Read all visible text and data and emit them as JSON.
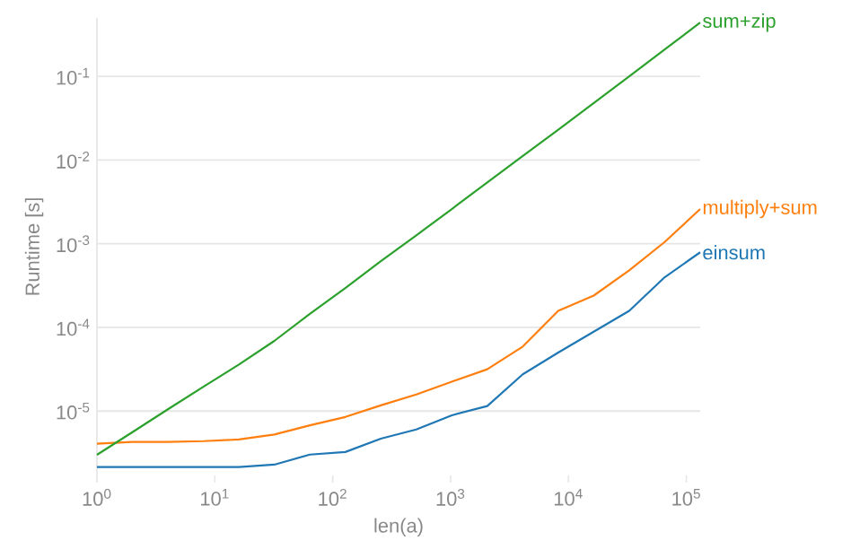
{
  "chart_data": {
    "type": "line",
    "xlabel": "len(a)",
    "ylabel": "Runtime [s]",
    "log": "xy",
    "grid": "y",
    "x": [
      1,
      2,
      4,
      8,
      16,
      32,
      64,
      128,
      256,
      512,
      1024,
      2048,
      4096,
      8192,
      16384,
      32768,
      65536,
      131072
    ],
    "series": [
      {
        "name": "einsum",
        "color": "#1f77b4",
        "values": [
          2.14e-06,
          2.14e-06,
          2.14e-06,
          2.14e-06,
          2.14e-06,
          2.29e-06,
          3.02e-06,
          3.24e-06,
          4.68e-06,
          6.03e-06,
          8.9e-06,
          1.15e-05,
          2.75e-05,
          5e-05,
          8.9e-05,
          0.000158,
          0.000398,
          0.00079
        ]
      },
      {
        "name": "multiply+sum",
        "color": "#ff7f0e",
        "values": [
          4.07e-06,
          4.27e-06,
          4.27e-06,
          4.37e-06,
          4.57e-06,
          5.25e-06,
          6.76e-06,
          8.5e-06,
          1.17e-05,
          1.58e-05,
          2.24e-05,
          3.16e-05,
          5.9e-05,
          0.000158,
          0.00024,
          0.00048,
          0.00105,
          0.0026
        ]
      },
      {
        "name": "sum+zip",
        "color": "#2ca02c",
        "values": [
          3e-06,
          5.6e-06,
          1.05e-05,
          1.95e-05,
          3.6e-05,
          6.9e-05,
          0.000145,
          0.000295,
          0.00062,
          0.00126,
          0.0026,
          0.0054,
          0.0112,
          0.023,
          0.048,
          0.1,
          0.21,
          0.44
        ]
      }
    ],
    "xlim": [
      1,
      131072
    ],
    "ylim": [
      1.7e-06,
      0.5
    ],
    "xticks": [
      {
        "value": 1,
        "label": "10$^{0}$"
      },
      {
        "value": 10,
        "label": "10$^{1}$"
      },
      {
        "value": 100,
        "label": "10$^{2}$"
      },
      {
        "value": 1000,
        "label": "10$^{3}$"
      },
      {
        "value": 10000,
        "label": "10$^{4}$"
      },
      {
        "value": 100000,
        "label": "10$^{5}$"
      }
    ],
    "yticks": [
      {
        "value": 1e-05,
        "label": "10$^{-5}$"
      },
      {
        "value": 0.0001,
        "label": "10$^{-4}$"
      },
      {
        "value": 0.001,
        "label": "10$^{-3}$"
      },
      {
        "value": 0.01,
        "label": "10$^{-2}$"
      },
      {
        "value": 0.1,
        "label": "10$^{-1}$"
      }
    ]
  }
}
